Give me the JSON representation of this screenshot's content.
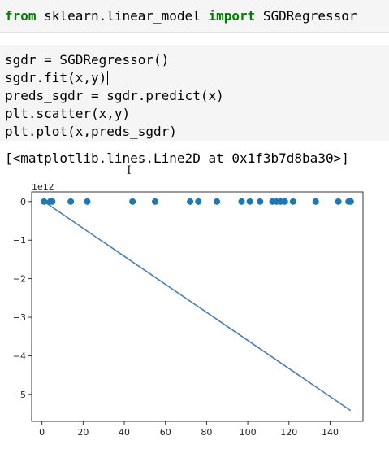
{
  "cell1": {
    "code_parts": [
      {
        "kw": true,
        "text": "from"
      },
      {
        "kw": false,
        "text": " sklearn.linear_model "
      },
      {
        "kw": true,
        "text": "import"
      },
      {
        "kw": false,
        "text": " SGDRegressor"
      }
    ]
  },
  "cell2": {
    "lines": [
      "sgdr = SGDRegressor()",
      "sgdr.fit(x,y)",
      "preds_sgdr = sgdr.predict(x)",
      "plt.scatter(x,y)",
      "plt.plot(x,preds_sgdr)"
    ]
  },
  "output": {
    "text": "[<matplotlib.lines.Line2D at 0x1f3b7d8ba30>]"
  },
  "chart_data": {
    "type": "scatter",
    "offset_label": "1e12",
    "xlim": [
      -5,
      156
    ],
    "ylim": [
      -5.7,
      0.25
    ],
    "xticks": [
      0,
      20,
      40,
      60,
      80,
      100,
      120,
      140
    ],
    "yticks": [
      0,
      -1,
      -2,
      -3,
      -4,
      -5
    ],
    "scatter_x": [
      1,
      4,
      5,
      14,
      22,
      44,
      55,
      72,
      76,
      85,
      97,
      101,
      106,
      112,
      114,
      116,
      118,
      122,
      133,
      144,
      149,
      150
    ],
    "scatter_y": [
      0,
      0,
      0,
      0,
      0,
      0,
      0,
      0,
      0,
      0,
      0,
      0,
      0,
      0,
      0,
      0,
      0,
      0,
      0,
      0,
      0,
      0
    ],
    "line_x": [
      1,
      150
    ],
    "line_y": [
      0,
      -5.42
    ],
    "colors": {
      "scatter": "#1f77b4",
      "line": "#4a7fb0"
    }
  }
}
